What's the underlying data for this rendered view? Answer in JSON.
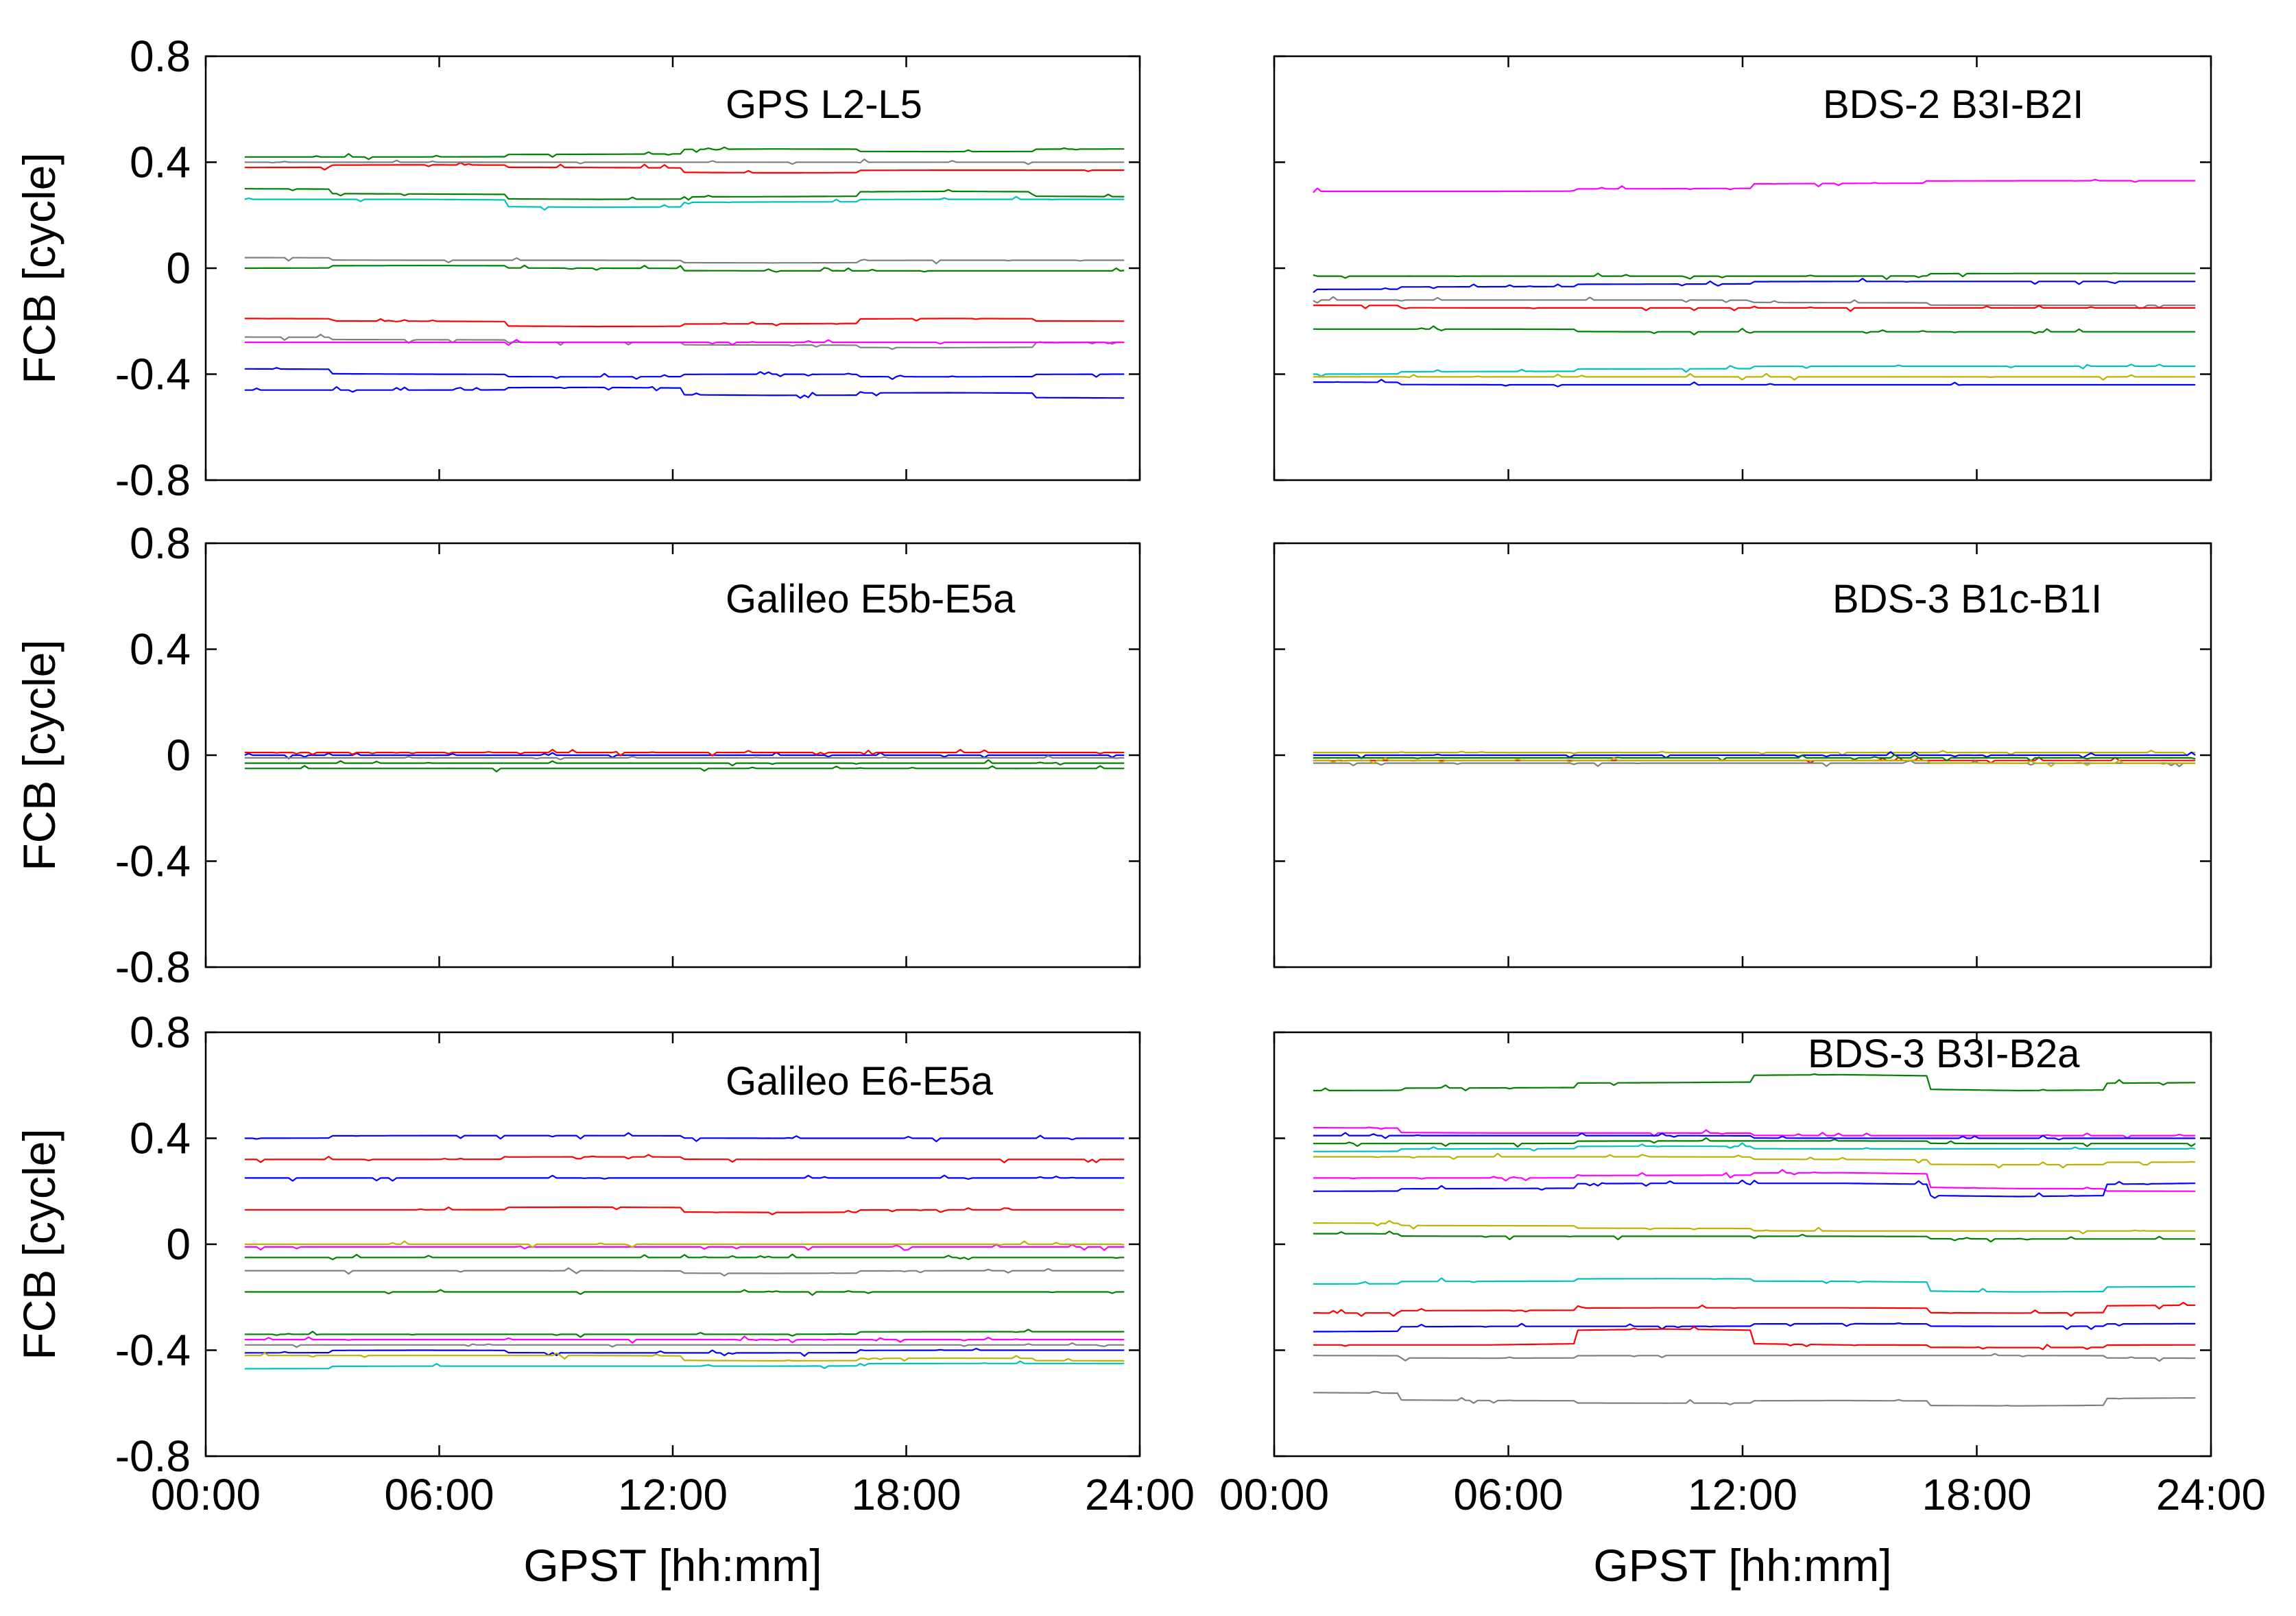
{
  "chart_data": [
    {
      "type": "line",
      "title": "GPS L2-L5",
      "xlabel": "",
      "ylabel": "FCB [cycle]",
      "xlim": [
        0,
        24
      ],
      "ylim": [
        -0.8,
        0.8
      ],
      "yticks": [
        "0.8",
        "0.4",
        "0",
        "-0.4",
        "-0.8"
      ],
      "xticks": [],
      "x_start": 1.0,
      "x_end": 23.6,
      "series": [
        {
          "name": "s1",
          "color": "#008000",
          "values": [
            0.42,
            0.42,
            0.43,
            0.45,
            0.44,
            0.45
          ]
        },
        {
          "name": "s2",
          "color": "#ff0000",
          "values": [
            0.38,
            0.39,
            0.38,
            0.36,
            0.37,
            0.37
          ]
        },
        {
          "name": "s3",
          "color": "#808080",
          "values": [
            0.4,
            0.4,
            0.4,
            0.4,
            0.4,
            0.4
          ]
        },
        {
          "name": "s4",
          "color": "#008000",
          "values": [
            0.3,
            0.28,
            0.26,
            0.27,
            0.29,
            0.27
          ]
        },
        {
          "name": "s5",
          "color": "#00c0c0",
          "values": [
            0.26,
            0.26,
            0.23,
            0.25,
            0.26,
            0.26
          ]
        },
        {
          "name": "s6",
          "color": "#808080",
          "values": [
            0.04,
            0.03,
            0.03,
            0.02,
            0.03,
            0.03
          ]
        },
        {
          "name": "s7",
          "color": "#008000",
          "values": [
            0.0,
            0.01,
            0.0,
            -0.01,
            -0.01,
            -0.01
          ]
        },
        {
          "name": "s8",
          "color": "#ff0000",
          "values": [
            -0.19,
            -0.2,
            -0.22,
            -0.21,
            -0.19,
            -0.2
          ]
        },
        {
          "name": "s9",
          "color": "#808080",
          "values": [
            -0.26,
            -0.27,
            -0.28,
            -0.29,
            -0.3,
            -0.28
          ]
        },
        {
          "name": "s10",
          "color": "#ff00ff",
          "values": [
            -0.28,
            -0.28,
            -0.28,
            -0.28,
            -0.28,
            -0.28
          ]
        },
        {
          "name": "s11",
          "color": "#0000ff",
          "values": [
            -0.38,
            -0.4,
            -0.41,
            -0.4,
            -0.41,
            -0.4
          ]
        },
        {
          "name": "s12",
          "color": "#0000ff",
          "values": [
            -0.46,
            -0.46,
            -0.45,
            -0.48,
            -0.47,
            -0.49
          ]
        }
      ]
    },
    {
      "type": "line",
      "title": "BDS-2 B3I-B2I",
      "xlabel": "",
      "ylabel": "",
      "xlim": [
        0,
        24
      ],
      "ylim": [
        -0.8,
        0.8
      ],
      "yticks": [],
      "xticks": [],
      "x_start": 1.0,
      "x_end": 23.6,
      "series": [
        {
          "name": "s1",
          "color": "#ff00ff",
          "values": [
            0.29,
            0.29,
            0.3,
            0.32,
            0.33,
            0.33
          ]
        },
        {
          "name": "s2",
          "color": "#008000",
          "values": [
            -0.03,
            -0.03,
            -0.03,
            -0.03,
            -0.02,
            -0.02
          ]
        },
        {
          "name": "s3",
          "color": "#0000ff",
          "values": [
            -0.08,
            -0.07,
            -0.06,
            -0.05,
            -0.05,
            -0.05
          ]
        },
        {
          "name": "s4",
          "color": "#808080",
          "values": [
            -0.12,
            -0.12,
            -0.12,
            -0.13,
            -0.14,
            -0.14
          ]
        },
        {
          "name": "s5",
          "color": "#ff0000",
          "values": [
            -0.14,
            -0.15,
            -0.15,
            -0.15,
            -0.15,
            -0.15
          ]
        },
        {
          "name": "s6",
          "color": "#008000",
          "values": [
            -0.23,
            -0.23,
            -0.24,
            -0.24,
            -0.24,
            -0.24
          ]
        },
        {
          "name": "s7",
          "color": "#00c0c0",
          "values": [
            -0.4,
            -0.39,
            -0.38,
            -0.37,
            -0.37,
            -0.37
          ]
        },
        {
          "name": "s8",
          "color": "#c0b000",
          "values": [
            -0.41,
            -0.41,
            -0.41,
            -0.41,
            -0.41,
            -0.41
          ]
        },
        {
          "name": "s9",
          "color": "#0000ff",
          "values": [
            -0.43,
            -0.44,
            -0.44,
            -0.44,
            -0.44,
            -0.44
          ]
        }
      ]
    },
    {
      "type": "line",
      "title": "Galileo E5b-E5a",
      "xlabel": "",
      "ylabel": "FCB [cycle]",
      "xlim": [
        0,
        24
      ],
      "ylim": [
        -0.8,
        0.8
      ],
      "yticks": [
        "0.8",
        "0.4",
        "0",
        "-0.4",
        "-0.8"
      ],
      "xticks": [],
      "x_start": 1.0,
      "x_end": 23.6,
      "series": [
        {
          "name": "s1",
          "color": "#0000ff",
          "values": [
            0.0,
            0.0,
            0.0,
            0.0,
            0.0,
            0.0
          ]
        },
        {
          "name": "s2",
          "color": "#ff0000",
          "values": [
            0.01,
            0.01,
            0.01,
            0.01,
            0.01,
            0.01
          ]
        },
        {
          "name": "s3",
          "color": "#808080",
          "values": [
            -0.01,
            -0.01,
            -0.01,
            -0.01,
            -0.01,
            -0.01
          ]
        },
        {
          "name": "s4",
          "color": "#008000",
          "values": [
            -0.03,
            -0.03,
            -0.03,
            -0.03,
            -0.03,
            -0.03
          ]
        },
        {
          "name": "s5",
          "color": "#008000",
          "values": [
            -0.05,
            -0.05,
            -0.05,
            -0.05,
            -0.05,
            -0.05
          ]
        }
      ]
    },
    {
      "type": "line",
      "title": "BDS-3 B1c-B1I",
      "xlabel": "",
      "ylabel": "",
      "xlim": [
        0,
        24
      ],
      "ylim": [
        -0.8,
        0.8
      ],
      "yticks": [],
      "xticks": [],
      "x_start": 1.0,
      "x_end": 23.6,
      "series": [
        {
          "name": "s1",
          "color": "#c0b000",
          "values": [
            0.01,
            0.01,
            0.01,
            0.01,
            0.01,
            0.01
          ]
        },
        {
          "name": "s2",
          "color": "#0000ff",
          "values": [
            0.0,
            0.0,
            0.0,
            0.0,
            0.0,
            0.0
          ]
        },
        {
          "name": "s3",
          "color": "#ff0000",
          "values": [
            -0.02,
            -0.02,
            -0.02,
            -0.02,
            -0.02,
            -0.02
          ]
        },
        {
          "name": "s4",
          "color": "#008000",
          "values": [
            -0.01,
            -0.01,
            -0.01,
            -0.01,
            -0.01,
            -0.01
          ]
        },
        {
          "name": "s5",
          "color": "#808080",
          "values": [
            -0.03,
            -0.03,
            -0.03,
            -0.03,
            -0.03,
            -0.03
          ]
        },
        {
          "name": "s6",
          "color": "#c0b000",
          "values": [
            -0.02,
            -0.02,
            -0.02,
            -0.02,
            -0.03,
            -0.03
          ]
        }
      ]
    },
    {
      "type": "line",
      "title": "Galileo E6-E5a",
      "xlabel": "GPST [hh:mm]",
      "ylabel": "FCB [cycle]",
      "xlim": [
        0,
        24
      ],
      "ylim": [
        -0.8,
        0.8
      ],
      "yticks": [
        "0.8",
        "0.4",
        "0",
        "-0.4",
        "-0.8"
      ],
      "xticks": [
        "00:00",
        "06:00",
        "12:00",
        "18:00",
        "24:00"
      ],
      "x_start": 1.0,
      "x_end": 23.6,
      "series": [
        {
          "name": "s1",
          "color": "#0000ff",
          "values": [
            0.4,
            0.41,
            0.41,
            0.4,
            0.4,
            0.4
          ]
        },
        {
          "name": "s2",
          "color": "#ff0000",
          "values": [
            0.32,
            0.32,
            0.33,
            0.32,
            0.32,
            0.32
          ]
        },
        {
          "name": "s3",
          "color": "#0000ff",
          "values": [
            0.25,
            0.25,
            0.25,
            0.25,
            0.25,
            0.25
          ]
        },
        {
          "name": "s4",
          "color": "#ff0000",
          "values": [
            0.13,
            0.13,
            0.14,
            0.12,
            0.13,
            0.13
          ]
        },
        {
          "name": "s5",
          "color": "#ff00ff",
          "values": [
            -0.01,
            -0.01,
            -0.01,
            -0.01,
            -0.01,
            -0.01
          ]
        },
        {
          "name": "s6",
          "color": "#c0b000",
          "values": [
            0.0,
            0.0,
            0.0,
            0.0,
            0.0,
            0.0
          ]
        },
        {
          "name": "s7",
          "color": "#008000",
          "values": [
            -0.05,
            -0.05,
            -0.05,
            -0.05,
            -0.05,
            -0.05
          ]
        },
        {
          "name": "s8",
          "color": "#808080",
          "values": [
            -0.1,
            -0.1,
            -0.1,
            -0.11,
            -0.1,
            -0.1
          ]
        },
        {
          "name": "s9",
          "color": "#008000",
          "values": [
            -0.18,
            -0.18,
            -0.18,
            -0.18,
            -0.18,
            -0.18
          ]
        },
        {
          "name": "s10",
          "color": "#008000",
          "values": [
            -0.34,
            -0.34,
            -0.34,
            -0.34,
            -0.33,
            -0.33
          ]
        },
        {
          "name": "s11",
          "color": "#ff00ff",
          "values": [
            -0.36,
            -0.36,
            -0.36,
            -0.36,
            -0.36,
            -0.36
          ]
        },
        {
          "name": "s12",
          "color": "#808080",
          "values": [
            -0.38,
            -0.38,
            -0.38,
            -0.38,
            -0.38,
            -0.38
          ]
        },
        {
          "name": "s13",
          "color": "#0000ff",
          "values": [
            -0.41,
            -0.4,
            -0.41,
            -0.41,
            -0.4,
            -0.4
          ]
        },
        {
          "name": "s14",
          "color": "#c0b000",
          "values": [
            -0.42,
            -0.42,
            -0.42,
            -0.44,
            -0.43,
            -0.44
          ]
        },
        {
          "name": "s15",
          "color": "#00c0c0",
          "values": [
            -0.47,
            -0.46,
            -0.46,
            -0.46,
            -0.45,
            -0.45
          ]
        }
      ]
    },
    {
      "type": "line",
      "title": "BDS-3 B3I-B2a",
      "xlabel": "GPST [hh:mm]",
      "ylabel": "",
      "xlim": [
        0,
        24
      ],
      "ylim": [
        -0.8,
        0.8
      ],
      "yticks": [],
      "xticks": [
        "00:00",
        "06:00",
        "12:00",
        "18:00",
        "24:00"
      ],
      "x_start": 1.0,
      "x_end": 23.6,
      "series": [
        {
          "name": "s1",
          "color": "#008000",
          "values": [
            0.58,
            0.59,
            0.61,
            0.64,
            0.58,
            0.61
          ]
        },
        {
          "name": "s2",
          "color": "#ff00ff",
          "values": [
            0.44,
            0.42,
            0.42,
            0.41,
            0.41,
            0.41
          ]
        },
        {
          "name": "s3",
          "color": "#0000ff",
          "values": [
            0.41,
            0.41,
            0.41,
            0.4,
            0.4,
            0.4
          ]
        },
        {
          "name": "s4",
          "color": "#008000",
          "values": [
            0.38,
            0.38,
            0.39,
            0.39,
            0.38,
            0.38
          ]
        },
        {
          "name": "s5",
          "color": "#00c0c0",
          "values": [
            0.35,
            0.36,
            0.37,
            0.36,
            0.36,
            0.36
          ]
        },
        {
          "name": "s6",
          "color": "#c0b000",
          "values": [
            0.33,
            0.33,
            0.33,
            0.32,
            0.3,
            0.31
          ]
        },
        {
          "name": "s7",
          "color": "#ff00ff",
          "values": [
            0.25,
            0.25,
            0.26,
            0.27,
            0.21,
            0.2
          ]
        },
        {
          "name": "s8",
          "color": "#0000ff",
          "values": [
            0.2,
            0.21,
            0.23,
            0.23,
            0.18,
            0.23
          ]
        },
        {
          "name": "s9",
          "color": "#c0b000",
          "values": [
            0.08,
            0.07,
            0.06,
            0.05,
            0.05,
            0.05
          ]
        },
        {
          "name": "s10",
          "color": "#008000",
          "values": [
            0.04,
            0.03,
            0.03,
            0.03,
            0.02,
            0.02
          ]
        },
        {
          "name": "s11",
          "color": "#00c0c0",
          "values": [
            -0.15,
            -0.14,
            -0.13,
            -0.14,
            -0.18,
            -0.16
          ]
        },
        {
          "name": "s12",
          "color": "#ff0000",
          "values": [
            -0.26,
            -0.25,
            -0.24,
            -0.24,
            -0.26,
            -0.23
          ]
        },
        {
          "name": "s13",
          "color": "#0000ff",
          "values": [
            -0.33,
            -0.31,
            -0.31,
            -0.3,
            -0.31,
            -0.3
          ]
        },
        {
          "name": "s14",
          "color": "#ff0000",
          "values": [
            -0.38,
            -0.38,
            -0.32,
            -0.38,
            -0.39,
            -0.38
          ]
        },
        {
          "name": "s15",
          "color": "#808080",
          "values": [
            -0.42,
            -0.43,
            -0.42,
            -0.42,
            -0.42,
            -0.43
          ]
        },
        {
          "name": "s16",
          "color": "#808080",
          "values": [
            -0.56,
            -0.59,
            -0.6,
            -0.59,
            -0.61,
            -0.58
          ]
        }
      ]
    }
  ]
}
